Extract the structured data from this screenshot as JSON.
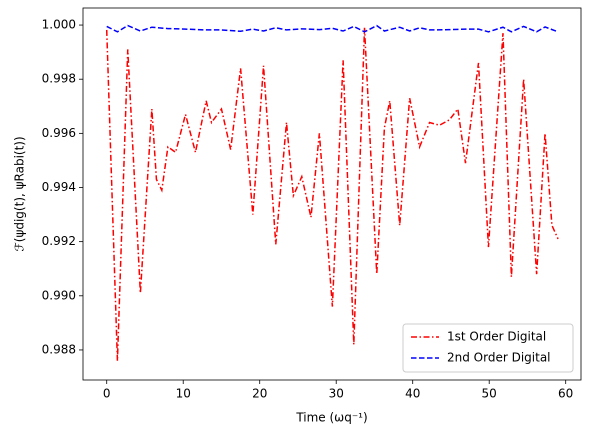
{
  "chart_data": {
    "type": "line",
    "xlabel": "Time (ωq⁻¹)",
    "ylabel": "ℱ(ψdig(t), ψRabi(t))",
    "xlim": [
      -3.1,
      62.0
    ],
    "ylim": [
      0.98689,
      1.00063
    ],
    "xticks": [
      0,
      10,
      20,
      30,
      40,
      50,
      60
    ],
    "yticks": [
      0.988,
      {
        "value": 0.99,
        "label": "0.990"
      },
      0.992,
      0.994,
      0.996,
      0.998,
      {
        "value": 1,
        "label": "1.000"
      }
    ],
    "legend": "lower right",
    "series": [
      {
        "name": "1st Order Digital",
        "color": "#ff0000",
        "dash": "dashdot",
        "x": [
          0,
          1.4,
          2.75,
          4.4,
          5.9,
          6.5,
          7.2,
          8,
          9,
          10.3,
          11.6,
          13,
          13.7,
          15,
          16.2,
          17.5,
          19.1,
          20.5,
          22.1,
          23.5,
          24.4,
          25.5,
          26.7,
          27.8,
          29.5,
          30.9,
          32.3,
          33.7,
          35.3,
          36.3,
          37,
          38.3,
          39.6,
          40.9,
          42.2,
          43.5,
          44.8,
          45.9,
          46.9,
          48.6,
          49.9,
          51.8,
          52.9,
          54.5,
          56.2,
          57.3,
          58.2,
          59
        ],
        "values": [
          0.99982,
          0.9876,
          0.9991,
          0.9901,
          0.9969,
          0.9943,
          0.9939,
          0.9955,
          0.9953,
          0.9967,
          0.9953,
          0.9972,
          0.9964,
          0.9969,
          0.9954,
          0.9984,
          0.993,
          0.9985,
          0.9919,
          0.9964,
          0.9937,
          0.9944,
          0.9929,
          0.996,
          0.9896,
          0.9987,
          0.9882,
          0.9999,
          0.9908,
          0.9962,
          0.9972,
          0.9926,
          0.9973,
          0.9955,
          0.9964,
          0.9963,
          0.9965,
          0.9969,
          0.9949,
          0.9986,
          0.9918,
          0.9997,
          0.9907,
          0.998,
          0.9908,
          0.996,
          0.9926,
          0.9921
        ]
      },
      {
        "name": "2nd Order Digital",
        "color": "#0000ff",
        "dash": "dashed",
        "x": [
          0,
          1.4,
          2.75,
          4.4,
          5.9,
          8,
          10.3,
          13,
          15,
          17.5,
          19.1,
          20.5,
          22.1,
          23.5,
          25.5,
          27.8,
          29.5,
          30.9,
          32.3,
          33.7,
          35.3,
          36.3,
          38.3,
          39.6,
          40.9,
          42.2,
          44.8,
          46.9,
          48.6,
          49.9,
          51.8,
          52.9,
          54.5,
          56.2,
          57.3,
          59
        ],
        "values": [
          0.99995,
          0.99975,
          0.99998,
          0.99978,
          0.99992,
          0.99987,
          0.99985,
          0.99982,
          0.99982,
          0.99977,
          0.99985,
          0.99978,
          0.9999,
          0.99982,
          0.99986,
          0.99983,
          0.99988,
          0.99978,
          0.99995,
          0.99975,
          0.99998,
          0.99978,
          0.99992,
          0.99978,
          0.9999,
          0.99982,
          0.99983,
          0.99985,
          0.99985,
          0.99975,
          0.99992,
          0.99975,
          0.99995,
          0.99975,
          0.99993,
          0.99975
        ]
      }
    ]
  }
}
